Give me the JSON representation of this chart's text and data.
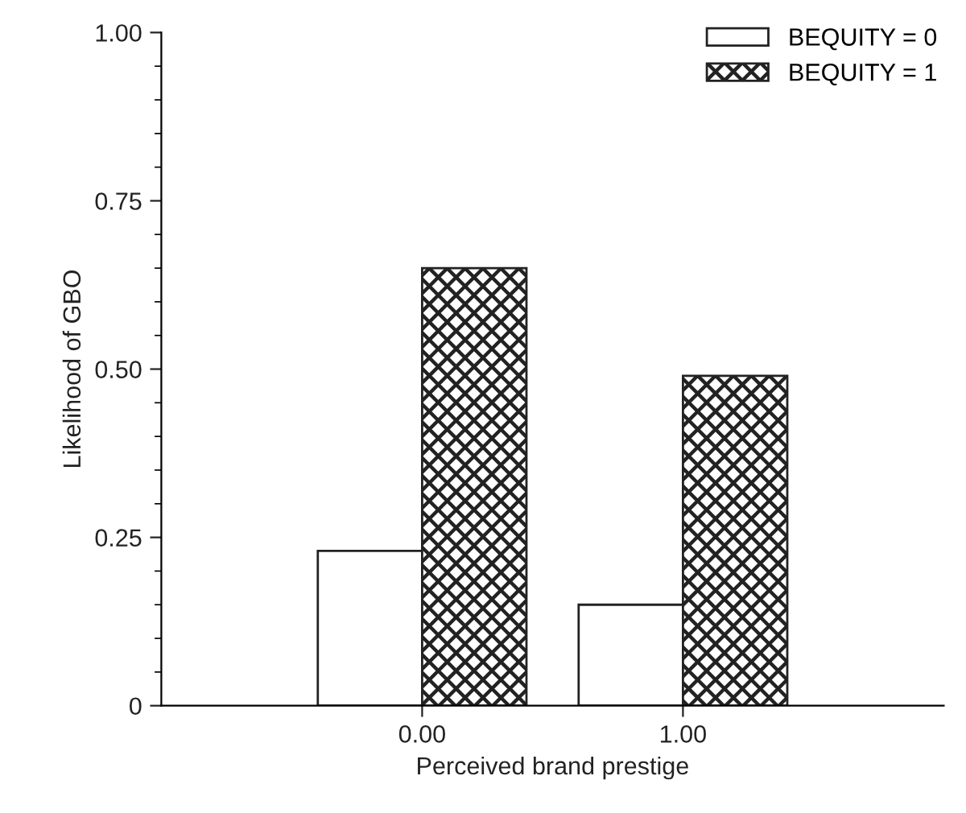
{
  "chart_data": {
    "type": "bar",
    "xlabel": "Perceived brand prestige",
    "ylabel": "Likelihood of GBO",
    "categories": [
      "0.00",
      "1.00"
    ],
    "series": [
      {
        "name": "BEQUITY = 0",
        "color": "#ffffff",
        "values": [
          0.23,
          0.15
        ]
      },
      {
        "name": "BEQUITY = 1",
        "color": "#222222",
        "values": [
          0.65,
          0.49
        ]
      }
    ],
    "ylim": [
      0,
      1
    ],
    "yticks": [
      {
        "value": 0,
        "label": "0"
      },
      {
        "value": 0.25,
        "label": "0.25"
      },
      {
        "value": 0.5,
        "label": "0.50"
      },
      {
        "value": 0.75,
        "label": "0.75"
      },
      {
        "value": 1,
        "label": "1.00"
      }
    ],
    "grid": false,
    "legend": "top right"
  }
}
